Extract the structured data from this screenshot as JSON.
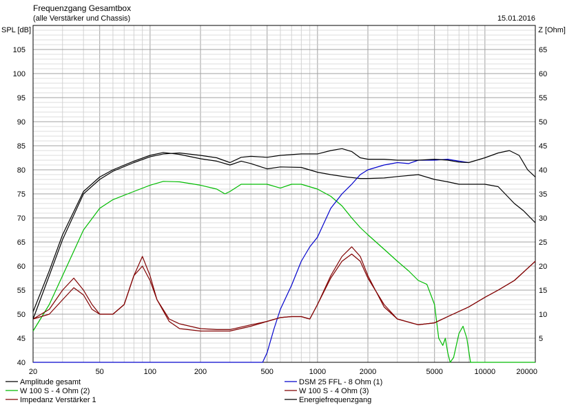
{
  "chart_data": {
    "type": "line",
    "title": "Frequenzgang Gesamtbox",
    "subtitle": "(alle Verstärker und Chassis)",
    "date": "15.01.2016",
    "ylabel": "SPL [dB]",
    "y2label": "Z [Ohm]",
    "x_scale": "log",
    "xlim": [
      20,
      20000
    ],
    "ylim": [
      40,
      110
    ],
    "y2lim": [
      0,
      70
    ],
    "x_ticks": [
      20,
      50,
      100,
      200,
      500,
      1000,
      2000,
      5000,
      10000,
      20000
    ],
    "x_tick_labels": [
      "20",
      "50",
      "100",
      "200",
      "500",
      "1000",
      "2000",
      "5000",
      "10000",
      "20000"
    ],
    "y_ticks": [
      40,
      45,
      50,
      55,
      60,
      65,
      70,
      75,
      80,
      85,
      90,
      95,
      100,
      105
    ],
    "y2_ticks": [
      5,
      10,
      15,
      20,
      25,
      30,
      35,
      40,
      45,
      50,
      55,
      60,
      65
    ],
    "grid": true,
    "legend_position": "bottom",
    "series": [
      {
        "name": "Amplitude gesamt",
        "color": "#000000",
        "axis": "left",
        "points": [
          [
            20,
            50.5
          ],
          [
            25,
            59
          ],
          [
            30,
            66.5
          ],
          [
            40,
            75.5
          ],
          [
            50,
            78.5
          ],
          [
            60,
            80
          ],
          [
            80,
            81.8
          ],
          [
            100,
            83
          ],
          [
            120,
            83.6
          ],
          [
            150,
            83.2
          ],
          [
            200,
            82.3
          ],
          [
            250,
            81.8
          ],
          [
            300,
            81
          ],
          [
            350,
            81.8
          ],
          [
            400,
            81.3
          ],
          [
            500,
            80.2
          ],
          [
            600,
            80.6
          ],
          [
            800,
            80.5
          ],
          [
            1000,
            79.5
          ],
          [
            1200,
            79
          ],
          [
            1500,
            78.5
          ],
          [
            1800,
            78.2
          ],
          [
            2000,
            78.2
          ],
          [
            2500,
            78.3
          ],
          [
            3000,
            78.6
          ],
          [
            4000,
            79
          ],
          [
            5000,
            78
          ],
          [
            6000,
            77.5
          ],
          [
            7000,
            77
          ],
          [
            8000,
            77
          ],
          [
            10000,
            77
          ],
          [
            12000,
            76.5
          ],
          [
            15000,
            73
          ],
          [
            17000,
            71.5
          ],
          [
            20000,
            69
          ]
        ]
      },
      {
        "name": "W 100 S - 4 Ohm (2)",
        "color": "#00bb00",
        "axis": "left",
        "points": [
          [
            20,
            46.5
          ],
          [
            25,
            52
          ],
          [
            30,
            58
          ],
          [
            40,
            67.5
          ],
          [
            50,
            72
          ],
          [
            60,
            73.8
          ],
          [
            80,
            75.5
          ],
          [
            100,
            76.8
          ],
          [
            120,
            77.6
          ],
          [
            150,
            77.5
          ],
          [
            200,
            76.8
          ],
          [
            250,
            76
          ],
          [
            280,
            75
          ],
          [
            300,
            75.5
          ],
          [
            350,
            77
          ],
          [
            400,
            77
          ],
          [
            500,
            77
          ],
          [
            600,
            76.2
          ],
          [
            700,
            77
          ],
          [
            800,
            77
          ],
          [
            1000,
            76
          ],
          [
            1200,
            74.5
          ],
          [
            1400,
            72.5
          ],
          [
            1600,
            70
          ],
          [
            1800,
            68
          ],
          [
            2000,
            66.5
          ],
          [
            2500,
            63.5
          ],
          [
            3000,
            61
          ],
          [
            3500,
            59
          ],
          [
            4000,
            57
          ],
          [
            4500,
            56.2
          ],
          [
            5000,
            52
          ],
          [
            5300,
            45
          ],
          [
            5600,
            43.5
          ],
          [
            5800,
            45
          ],
          [
            6000,
            42
          ],
          [
            6200,
            40
          ],
          [
            6500,
            41
          ],
          [
            7000,
            46
          ],
          [
            7400,
            47.5
          ],
          [
            7800,
            45
          ],
          [
            8200,
            40
          ],
          [
            20000,
            40
          ]
        ]
      },
      {
        "name": "Impedanz Verstärker 1",
        "color": "#800000",
        "axis": "right",
        "points": [
          [
            20,
            9
          ],
          [
            25,
            11
          ],
          [
            30,
            15
          ],
          [
            35,
            17.5
          ],
          [
            40,
            15
          ],
          [
            45,
            12
          ],
          [
            50,
            10
          ],
          [
            60,
            10
          ],
          [
            70,
            12
          ],
          [
            80,
            18
          ],
          [
            90,
            22
          ],
          [
            100,
            18
          ],
          [
            110,
            13
          ],
          [
            130,
            8.5
          ],
          [
            150,
            7
          ],
          [
            200,
            6.5
          ],
          [
            250,
            6.5
          ],
          [
            300,
            6.5
          ],
          [
            400,
            7.5
          ],
          [
            500,
            8.5
          ],
          [
            600,
            9.3
          ],
          [
            700,
            9.5
          ],
          [
            800,
            9.5
          ],
          [
            900,
            9
          ],
          [
            1000,
            12
          ],
          [
            1200,
            18
          ],
          [
            1400,
            22
          ],
          [
            1600,
            24
          ],
          [
            1800,
            22
          ],
          [
            2000,
            18
          ],
          [
            2500,
            11.5
          ],
          [
            3000,
            9
          ],
          [
            4000,
            7.8
          ],
          [
            5000,
            8.2
          ],
          [
            6000,
            9.5
          ],
          [
            8000,
            11.5
          ],
          [
            10000,
            13.5
          ],
          [
            12000,
            15
          ],
          [
            15000,
            17
          ],
          [
            20000,
            21
          ]
        ]
      },
      {
        "name": "DSM 25 FFL - 8 Ohm (1)",
        "color": "#0000cc",
        "axis": "left",
        "points": [
          [
            20,
            40
          ],
          [
            470,
            40
          ],
          [
            500,
            42
          ],
          [
            550,
            47
          ],
          [
            600,
            51
          ],
          [
            700,
            56
          ],
          [
            800,
            61
          ],
          [
            900,
            64
          ],
          [
            1000,
            66
          ],
          [
            1200,
            72
          ],
          [
            1400,
            75
          ],
          [
            1600,
            77
          ],
          [
            1800,
            79
          ],
          [
            2000,
            80
          ],
          [
            2500,
            81
          ],
          [
            3000,
            81.5
          ],
          [
            3500,
            81.3
          ],
          [
            4000,
            82
          ],
          [
            5000,
            82
          ],
          [
            6000,
            82.2
          ],
          [
            7000,
            81.8
          ],
          [
            8000,
            81.5
          ]
        ]
      },
      {
        "name": "W 100 S - 4 Ohm (3)",
        "color": "#800000",
        "axis": "left",
        "points": [
          [
            20,
            49
          ],
          [
            25,
            50
          ],
          [
            30,
            53
          ],
          [
            35,
            55.5
          ],
          [
            40,
            54
          ],
          [
            45,
            51
          ],
          [
            50,
            50
          ],
          [
            60,
            50
          ],
          [
            70,
            52
          ],
          [
            80,
            58
          ],
          [
            90,
            60
          ],
          [
            100,
            57
          ],
          [
            110,
            53
          ],
          [
            130,
            49
          ],
          [
            150,
            48
          ],
          [
            200,
            47
          ],
          [
            250,
            46.8
          ],
          [
            300,
            46.8
          ],
          [
            400,
            47.8
          ],
          [
            500,
            48.5
          ],
          [
            600,
            49.3
          ],
          [
            700,
            49.5
          ],
          [
            800,
            49.5
          ],
          [
            900,
            49
          ],
          [
            1000,
            52
          ],
          [
            1200,
            57.5
          ],
          [
            1400,
            61
          ],
          [
            1600,
            62.5
          ],
          [
            1800,
            61
          ],
          [
            2000,
            57.5
          ],
          [
            2500,
            52
          ],
          [
            3000,
            49
          ],
          [
            4000,
            47.8
          ],
          [
            5000,
            48.2
          ],
          [
            6000,
            49.5
          ],
          [
            8000,
            51.5
          ],
          [
            10000,
            53.5
          ],
          [
            12000,
            55
          ],
          [
            15000,
            57
          ],
          [
            20000,
            61
          ]
        ]
      },
      {
        "name": "Energiefrequenzgang",
        "color": "#000000",
        "axis": "left",
        "points": [
          [
            20,
            49
          ],
          [
            25,
            58
          ],
          [
            30,
            65.5
          ],
          [
            40,
            75
          ],
          [
            50,
            78
          ],
          [
            60,
            79.7
          ],
          [
            80,
            81.5
          ],
          [
            100,
            82.7
          ],
          [
            120,
            83.3
          ],
          [
            150,
            83.5
          ],
          [
            200,
            83
          ],
          [
            250,
            82.5
          ],
          [
            300,
            81.5
          ],
          [
            350,
            82.6
          ],
          [
            400,
            82.8
          ],
          [
            500,
            82.6
          ],
          [
            600,
            83
          ],
          [
            800,
            83.3
          ],
          [
            1000,
            83.3
          ],
          [
            1200,
            84
          ],
          [
            1400,
            84.4
          ],
          [
            1600,
            83.8
          ],
          [
            1800,
            82.5
          ],
          [
            2000,
            82.2
          ],
          [
            2500,
            82.2
          ],
          [
            3000,
            82
          ],
          [
            4000,
            82
          ],
          [
            5000,
            82.2
          ],
          [
            6000,
            82
          ],
          [
            7000,
            81.6
          ],
          [
            8000,
            81.5
          ],
          [
            10000,
            82.5
          ],
          [
            12000,
            83.5
          ],
          [
            14000,
            84
          ],
          [
            16000,
            83
          ],
          [
            18000,
            80
          ],
          [
            20000,
            78.5
          ]
        ]
      }
    ]
  }
}
